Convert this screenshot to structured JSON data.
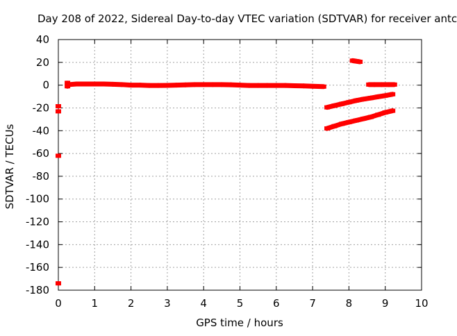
{
  "chart_data": {
    "type": "scatter",
    "title": "Day 208 of 2022, Sidereal Day-to-day VTEC variation (SDTVAR) for receiver antc",
    "xlabel": "GPS time / hours",
    "ylabel": "SDTVAR / TECUs",
    "xlim": [
      0,
      10
    ],
    "ylim": [
      -180,
      40
    ],
    "xticks": [
      0,
      1,
      2,
      3,
      4,
      5,
      6,
      7,
      8,
      9,
      10
    ],
    "yticks": [
      40,
      20,
      0,
      -20,
      -40,
      -60,
      -80,
      -100,
      -120,
      -140,
      -160,
      -180
    ],
    "grid": true,
    "legend": "none",
    "point_color": "#ff0000",
    "series": [
      {
        "points": [
          [
            0.0,
            -18.5
          ],
          [
            0.0,
            -23
          ],
          [
            0.0,
            -62
          ],
          [
            0.0,
            -174
          ],
          [
            0.25,
            2
          ],
          [
            0.25,
            -1
          ],
          [
            0.3,
            0.5
          ],
          [
            0.5,
            1
          ],
          [
            0.75,
            1
          ],
          [
            1.0,
            1
          ],
          [
            1.25,
            1
          ],
          [
            1.5,
            0.8
          ],
          [
            1.75,
            0.5
          ],
          [
            2.0,
            0
          ],
          [
            2.25,
            0
          ],
          [
            2.5,
            -0.3
          ],
          [
            2.75,
            -0.3
          ],
          [
            3.0,
            -0.2
          ],
          [
            3.25,
            0
          ],
          [
            3.5,
            0.2
          ],
          [
            3.75,
            0.5
          ],
          [
            4.0,
            0.5
          ],
          [
            4.25,
            0.5
          ],
          [
            4.5,
            0.5
          ],
          [
            4.75,
            0.3
          ],
          [
            5.0,
            0
          ],
          [
            5.25,
            -0.3
          ],
          [
            5.5,
            -0.3
          ],
          [
            5.75,
            -0.3
          ],
          [
            6.0,
            -0.3
          ],
          [
            6.25,
            -0.3
          ],
          [
            6.5,
            -0.5
          ],
          [
            6.75,
            -0.7
          ],
          [
            7.0,
            -1
          ],
          [
            7.3,
            -1.3
          ],
          [
            8.1,
            21.5
          ],
          [
            8.2,
            21
          ],
          [
            8.3,
            20.5
          ],
          [
            8.55,
            0.5
          ],
          [
            8.7,
            0.5
          ],
          [
            8.9,
            0.5
          ],
          [
            9.1,
            0.5
          ],
          [
            9.25,
            0.5
          ],
          [
            7.4,
            -19.5
          ],
          [
            7.6,
            -18
          ],
          [
            7.8,
            -16.5
          ],
          [
            8.0,
            -15
          ],
          [
            8.2,
            -13.5
          ],
          [
            8.4,
            -12.3
          ],
          [
            8.6,
            -11.3
          ],
          [
            8.8,
            -10.2
          ],
          [
            9.0,
            -9.2
          ],
          [
            9.2,
            -8
          ],
          [
            7.4,
            -38
          ],
          [
            7.6,
            -36
          ],
          [
            7.8,
            -34
          ],
          [
            8.0,
            -32.5
          ],
          [
            8.2,
            -31
          ],
          [
            8.4,
            -29.5
          ],
          [
            8.6,
            -28
          ],
          [
            8.8,
            -26
          ],
          [
            9.0,
            -24
          ],
          [
            9.2,
            -22.5
          ]
        ]
      }
    ]
  }
}
